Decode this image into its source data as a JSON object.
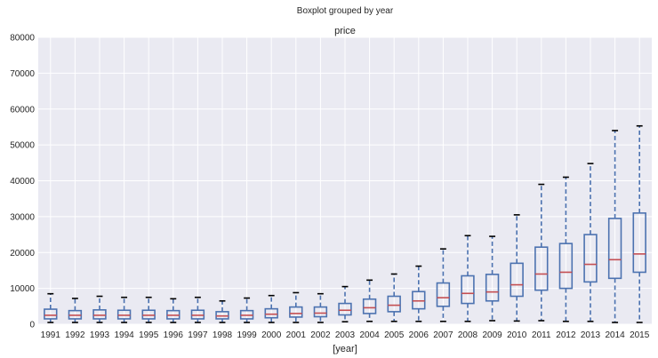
{
  "chart_data": {
    "type": "boxplot",
    "suptitle": "Boxplot grouped by year",
    "title": "price",
    "xlabel": "[year]",
    "ylabel": "",
    "ylim": [
      0,
      80000
    ],
    "yticks": [
      0,
      10000,
      20000,
      30000,
      40000,
      50000,
      60000,
      70000,
      80000
    ],
    "ytick_labels": [
      "0",
      "10000",
      "20000",
      "30000",
      "40000",
      "50000",
      "60000",
      "70000",
      "80000"
    ],
    "grid": true,
    "colors": {
      "background": "#eaeaf2",
      "grid": "#ffffff",
      "box": "#4c72b0",
      "median": "#c44e52",
      "cap": "#000000"
    },
    "categories": [
      "1991",
      "1992",
      "1993",
      "1994",
      "1995",
      "1996",
      "1997",
      "1998",
      "1999",
      "2000",
      "2001",
      "2002",
      "2003",
      "2004",
      "2005",
      "2006",
      "2007",
      "2008",
      "2009",
      "2010",
      "2011",
      "2012",
      "2013",
      "2014",
      "2015"
    ],
    "boxes": [
      {
        "min": 500,
        "q1": 1500,
        "median": 2500,
        "q3": 4200,
        "max": 8500
      },
      {
        "min": 500,
        "q1": 1500,
        "median": 2500,
        "q3": 3800,
        "max": 7200
      },
      {
        "min": 500,
        "q1": 1500,
        "median": 2500,
        "q3": 4000,
        "max": 7800
      },
      {
        "min": 500,
        "q1": 1500,
        "median": 2500,
        "q3": 3900,
        "max": 7500
      },
      {
        "min": 500,
        "q1": 1500,
        "median": 2500,
        "q3": 3900,
        "max": 7500
      },
      {
        "min": 500,
        "q1": 1500,
        "median": 2500,
        "q3": 3800,
        "max": 7100
      },
      {
        "min": 500,
        "q1": 1500,
        "median": 2500,
        "q3": 3900,
        "max": 7500
      },
      {
        "min": 500,
        "q1": 1500,
        "median": 2300,
        "q3": 3500,
        "max": 6500
      },
      {
        "min": 500,
        "q1": 1500,
        "median": 2500,
        "q3": 3800,
        "max": 7300
      },
      {
        "min": 500,
        "q1": 1800,
        "median": 2800,
        "q3": 4300,
        "max": 8000
      },
      {
        "min": 500,
        "q1": 2000,
        "median": 3000,
        "q3": 4800,
        "max": 8800
      },
      {
        "min": 500,
        "q1": 2100,
        "median": 3100,
        "q3": 4800,
        "max": 8500
      },
      {
        "min": 700,
        "q1": 2600,
        "median": 3900,
        "q3": 5800,
        "max": 10500
      },
      {
        "min": 800,
        "q1": 3000,
        "median": 4600,
        "q3": 7000,
        "max": 12300
      },
      {
        "min": 800,
        "q1": 3500,
        "median": 5300,
        "q3": 7800,
        "max": 14000
      },
      {
        "min": 800,
        "q1": 4300,
        "median": 6500,
        "q3": 9100,
        "max": 16200
      },
      {
        "min": 800,
        "q1": 5000,
        "median": 7400,
        "q3": 11500,
        "max": 21000
      },
      {
        "min": 800,
        "q1": 5800,
        "median": 8600,
        "q3": 13500,
        "max": 24700
      },
      {
        "min": 1000,
        "q1": 6500,
        "median": 9000,
        "q3": 13900,
        "max": 24500
      },
      {
        "min": 900,
        "q1": 7800,
        "median": 11000,
        "q3": 17000,
        "max": 30500
      },
      {
        "min": 1000,
        "q1": 9500,
        "median": 14000,
        "q3": 21500,
        "max": 39000
      },
      {
        "min": 800,
        "q1": 10000,
        "median": 14500,
        "q3": 22500,
        "max": 41000
      },
      {
        "min": 800,
        "q1": 11800,
        "median": 16700,
        "q3": 25000,
        "max": 44800
      },
      {
        "min": 500,
        "q1": 12800,
        "median": 18000,
        "q3": 29500,
        "max": 54000
      },
      {
        "min": 500,
        "q1": 14500,
        "median": 19600,
        "q3": 31000,
        "max": 55300
      }
    ]
  }
}
